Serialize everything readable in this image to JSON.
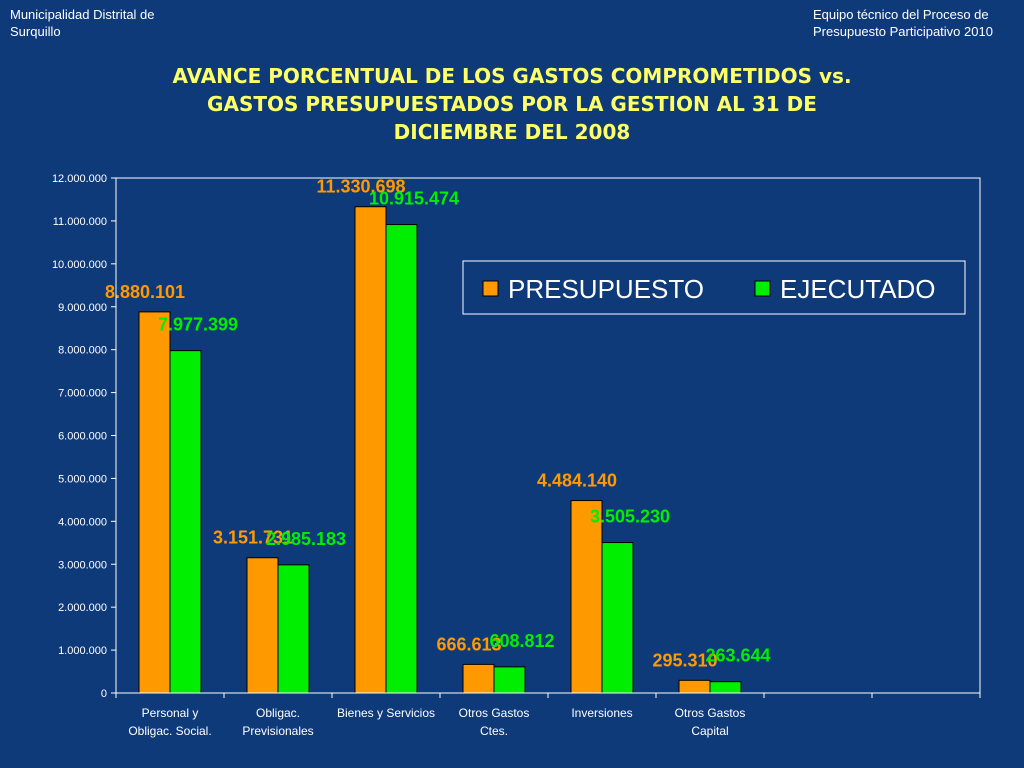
{
  "header": {
    "left_line1": "Municipalidad Distrital de",
    "left_line2": "Surquillo",
    "right_line1": "Equipo técnico del Proceso de",
    "right_line2": "Presupuesto Participativo 2010"
  },
  "title_lines": [
    "AVANCE PORCENTUAL DE LOS GASTOS COMPROMETIDOS vs.",
    "GASTOS PRESUPUESTADOS POR LA GESTION AL 31 DE",
    "DICIEMBRE DEL 2008"
  ],
  "colors": {
    "background": "#0f3a7a",
    "title": "#ffff66",
    "presupuesto": "#ff9900",
    "ejecutado": "#00ee00",
    "plot_area": "#0f3a7a"
  },
  "chart_data": {
    "type": "bar",
    "title": "AVANCE PORCENTUAL DE LOS GASTOS COMPROMETIDOS vs. GASTOS PRESUPUESTADOS POR LA GESTION AL 31 DE DICIEMBRE DEL 2008",
    "categories": [
      [
        "Personal y",
        "Obligac. Social."
      ],
      [
        "Obligac.",
        "Previsionales"
      ],
      [
        "Bienes y Servicios"
      ],
      [
        "Otros Gastos",
        "Ctes."
      ],
      [
        "Inversiones"
      ],
      [
        "Otros Gastos",
        "Capital"
      ],
      [
        ""
      ],
      [
        ""
      ]
    ],
    "series": [
      {
        "name": "PRESUPUESTO",
        "values": [
          8880101,
          3151731,
          11330698,
          666613,
          4484140,
          295310,
          null,
          null
        ],
        "labels": [
          "8.880.101",
          "3.151.731",
          "11.330.698",
          "666.613",
          "4.484.140",
          "295.310",
          "",
          ""
        ]
      },
      {
        "name": "EJECUTADO",
        "values": [
          7977399,
          2985183,
          10915474,
          608812,
          3505230,
          263644,
          null,
          null
        ],
        "labels": [
          "7.977.399",
          "2.985.183",
          "10.915.474",
          "608.812",
          "3.505.230",
          "263.644",
          "",
          ""
        ]
      }
    ],
    "ylim": [
      0,
      12000000
    ],
    "ytick_labels": [
      "0",
      "1.000.000",
      "2.000.000",
      "3.000.000",
      "4.000.000",
      "5.000.000",
      "6.000.000",
      "7.000.000",
      "8.000.000",
      "9.000.000",
      "10.000.000",
      "11.000.000",
      "12.000.000"
    ],
    "legend_position": "top-right",
    "grid": false
  }
}
